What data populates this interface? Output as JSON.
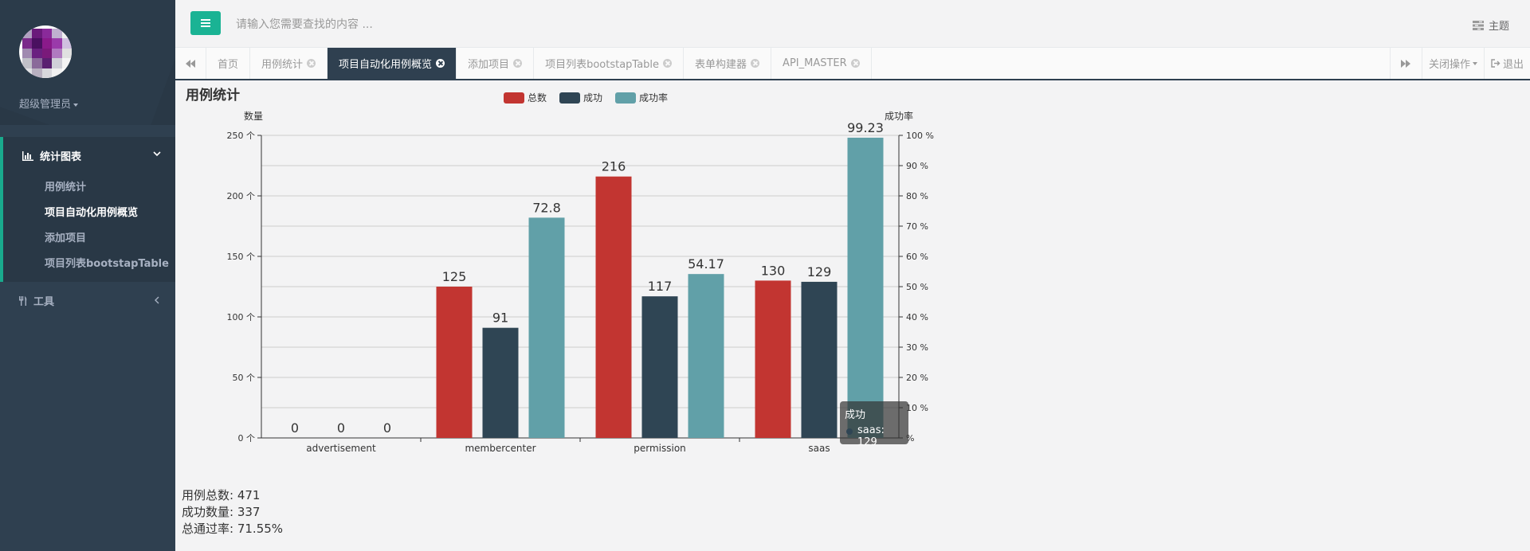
{
  "profile": {
    "name": "超级管理员"
  },
  "sidebar": {
    "group_label": "统计图表",
    "items": [
      {
        "label": "用例统计"
      },
      {
        "label": "项目自动化用例概览"
      },
      {
        "label": "添加项目"
      },
      {
        "label": "项目列表bootstapTable"
      }
    ],
    "tools_label": "工具"
  },
  "header": {
    "search_placeholder": "请输入您需要查找的内容 ...",
    "theme_label": "主题"
  },
  "tabs": {
    "items": [
      {
        "label": "首页"
      },
      {
        "label": "用例统计"
      },
      {
        "label": "项目自动化用例概览"
      },
      {
        "label": "添加项目"
      },
      {
        "label": "项目列表bootstapTable"
      },
      {
        "label": "表单构建器"
      },
      {
        "label": "API_MASTER"
      }
    ],
    "close_ops_label": "关闭操作",
    "logout_label": "退出"
  },
  "colors": {
    "accent": "#1ab394",
    "sidebar": "#2f4050",
    "series_total": "#c23531",
    "series_success": "#2f4554",
    "series_rate": "#61a0a8"
  },
  "chart_data": {
    "type": "bar",
    "title": "用例统计",
    "legend": [
      "总数",
      "成功",
      "成功率"
    ],
    "categories": [
      "advertisement",
      "membercenter",
      "permission",
      "saas"
    ],
    "series": [
      {
        "name": "总数",
        "axis": "left",
        "values": [
          0,
          125,
          216,
          130
        ]
      },
      {
        "name": "成功",
        "axis": "left",
        "values": [
          0,
          91,
          117,
          129
        ]
      },
      {
        "name": "成功率",
        "axis": "right",
        "values": [
          0,
          72.8,
          54.17,
          99.23
        ]
      }
    ],
    "ylabel_left": "数量",
    "ylabel_right": "成功率",
    "ylim_left": [
      0,
      250
    ],
    "ylim_right": [
      0,
      100
    ],
    "yticks_left": [
      "0 个",
      "50 个",
      "100 个",
      "150 个",
      "200 个",
      "250 个"
    ],
    "yticks_right": [
      "%",
      "10 %",
      "20 %",
      "30 %",
      "40 %",
      "50 %",
      "60 %",
      "70 %",
      "80 %",
      "90 %",
      "100 %"
    ],
    "tooltip": {
      "title": "成功",
      "text": "saas: 129"
    }
  },
  "stats": {
    "total_label": "用例总数:",
    "total_value": "471",
    "success_label": "成功数量:",
    "success_value": "337",
    "rate_label": "总通过率:",
    "rate_value": "71.55%"
  }
}
